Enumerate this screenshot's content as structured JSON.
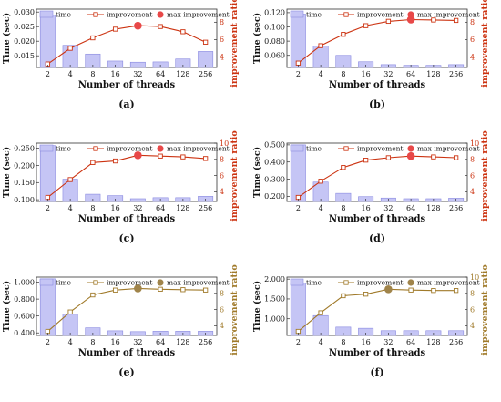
{
  "legend": {
    "time": "time",
    "improvement": "improvement",
    "max": "max improvement"
  },
  "chart_data": [
    {
      "type": "bar",
      "caption": "(a)",
      "categories": [
        "2",
        "4",
        "8",
        "16",
        "32",
        "64",
        "128",
        "256"
      ],
      "xlabel": "Number of threads",
      "ylabel": "Time (sec)",
      "y2label": "improvement ratio",
      "ylim": [
        0.011,
        0.031
      ],
      "yticks": [
        "0.030",
        "0.025",
        "0.020",
        "0.015"
      ],
      "y2lim": [
        2.8,
        9.5
      ],
      "y2ticks": [
        "8",
        "6",
        "4"
      ],
      "time": [
        0.029,
        0.0186,
        0.0156,
        0.0132,
        0.0128,
        0.0129,
        0.0139,
        0.0165
      ],
      "improvement": [
        3.2,
        5.0,
        6.2,
        7.2,
        7.6,
        7.5,
        6.9,
        5.7
      ],
      "max_index": 4,
      "colors": {
        "bar": "#c5c5f5",
        "bar_edge": "#8a8ae0",
        "line": "#cc3311",
        "marker": "#e84848",
        "y2": "#cc3311"
      }
    },
    {
      "type": "bar",
      "caption": "(b)",
      "categories": [
        "2",
        "4",
        "8",
        "16",
        "32",
        "64",
        "128",
        "256"
      ],
      "xlabel": "Number of threads",
      "ylabel": "Time (sec)",
      "y2label": "improvement ratio",
      "ylim": [
        0.043,
        0.125
      ],
      "yticks": [
        "0.120",
        "0.100",
        "0.080",
        "0.060"
      ],
      "y2lim": [
        2.8,
        9.5
      ],
      "y2ticks": [
        "8",
        "6",
        "4"
      ],
      "time": [
        0.118,
        0.073,
        0.06,
        0.051,
        0.047,
        0.046,
        0.046,
        0.047
      ],
      "improvement": [
        3.3,
        5.3,
        6.6,
        7.6,
        8.1,
        8.3,
        8.25,
        8.2
      ],
      "max_index": 5,
      "colors": {
        "bar": "#c5c5f5",
        "bar_edge": "#8a8ae0",
        "line": "#cc3311",
        "marker": "#e84848",
        "y2": "#cc3311"
      }
    },
    {
      "type": "bar",
      "caption": "(c)",
      "categories": [
        "2",
        "4",
        "8",
        "16",
        "32",
        "64",
        "128",
        "256"
      ],
      "xlabel": "Number of threads",
      "ylabel": "Time (sec)",
      "y2label": "improvement ratio",
      "ylim": [
        0.095,
        0.265
      ],
      "yticks": [
        "0.250",
        "0.200",
        "0.150",
        "0.100"
      ],
      "y2lim": [
        2.8,
        10.0
      ],
      "y2ticks": [
        "10",
        "8",
        "6",
        "4"
      ],
      "time": [
        0.258,
        0.16,
        0.116,
        0.112,
        0.103,
        0.106,
        0.106,
        0.11
      ],
      "improvement": [
        3.3,
        5.5,
        7.6,
        7.8,
        8.5,
        8.4,
        8.3,
        8.1
      ],
      "max_index": 4,
      "colors": {
        "bar": "#c5c5f5",
        "bar_edge": "#8a8ae0",
        "line": "#cc3311",
        "marker": "#e84848",
        "y2": "#cc3311"
      }
    },
    {
      "type": "bar",
      "caption": "(d)",
      "categories": [
        "2",
        "4",
        "8",
        "16",
        "32",
        "64",
        "128",
        "256"
      ],
      "xlabel": "Number of threads",
      "ylabel": "Time (sec)",
      "y2label": "improvement ratio",
      "ylim": [
        0.17,
        0.51
      ],
      "yticks": [
        "0.500",
        "0.400",
        "0.300",
        "0.200"
      ],
      "y2lim": [
        2.8,
        10.0
      ],
      "y2ticks": [
        "10",
        "8",
        "6",
        "4"
      ],
      "time": [
        0.5,
        0.283,
        0.217,
        0.198,
        0.19,
        0.186,
        0.186,
        0.189
      ],
      "improvement": [
        3.3,
        5.3,
        7.0,
        7.9,
        8.2,
        8.4,
        8.3,
        8.2
      ],
      "max_index": 5,
      "colors": {
        "bar": "#c5c5f5",
        "bar_edge": "#8a8ae0",
        "line": "#cc3311",
        "marker": "#e84848",
        "y2": "#cc3311"
      }
    },
    {
      "type": "bar",
      "caption": "(e)",
      "categories": [
        "2",
        "4",
        "8",
        "16",
        "32",
        "64",
        "128",
        "256"
      ],
      "xlabel": "Number of threads",
      "ylabel": "Time (sec)",
      "y2label": "improvement ratio",
      "ylim": [
        0.37,
        1.06
      ],
      "yticks": [
        "1.000",
        "0.800",
        "0.600",
        "0.400"
      ],
      "y2lim": [
        2.8,
        10.0
      ],
      "y2ticks": [
        "8",
        "6",
        "4"
      ],
      "time": [
        1.04,
        0.62,
        0.46,
        0.425,
        0.415,
        0.42,
        0.42,
        0.42
      ],
      "improvement": [
        3.3,
        5.7,
        7.8,
        8.4,
        8.6,
        8.5,
        8.45,
        8.4
      ],
      "max_index": 4,
      "colors": {
        "bar": "#c5c5f5",
        "bar_edge": "#8a8ae0",
        "line": "#a07a2a",
        "marker": "#a0844a",
        "y2": "#a07a2a"
      }
    },
    {
      "type": "bar",
      "caption": "(f)",
      "categories": [
        "2",
        "4",
        "8",
        "16",
        "32",
        "64",
        "128",
        "256"
      ],
      "xlabel": "Number of threads",
      "ylabel": "Time (sec)",
      "y2label": "improvement ratio",
      "ylim": [
        0.58,
        2.05
      ],
      "yticks": [
        "2.000",
        "1.500",
        "1.000"
      ],
      "y2lim": [
        2.8,
        10.0
      ],
      "y2ticks": [
        "10",
        "8",
        "6",
        "4"
      ],
      "time": [
        1.9,
        1.08,
        0.79,
        0.76,
        0.7,
        0.7,
        0.7,
        0.7
      ],
      "improvement": [
        3.3,
        5.6,
        7.7,
        7.9,
        8.5,
        8.4,
        8.35,
        8.35
      ],
      "max_index": 4,
      "colors": {
        "bar": "#c5c5f5",
        "bar_edge": "#8a8ae0",
        "line": "#a07a2a",
        "marker": "#a0844a",
        "y2": "#a07a2a"
      }
    }
  ]
}
